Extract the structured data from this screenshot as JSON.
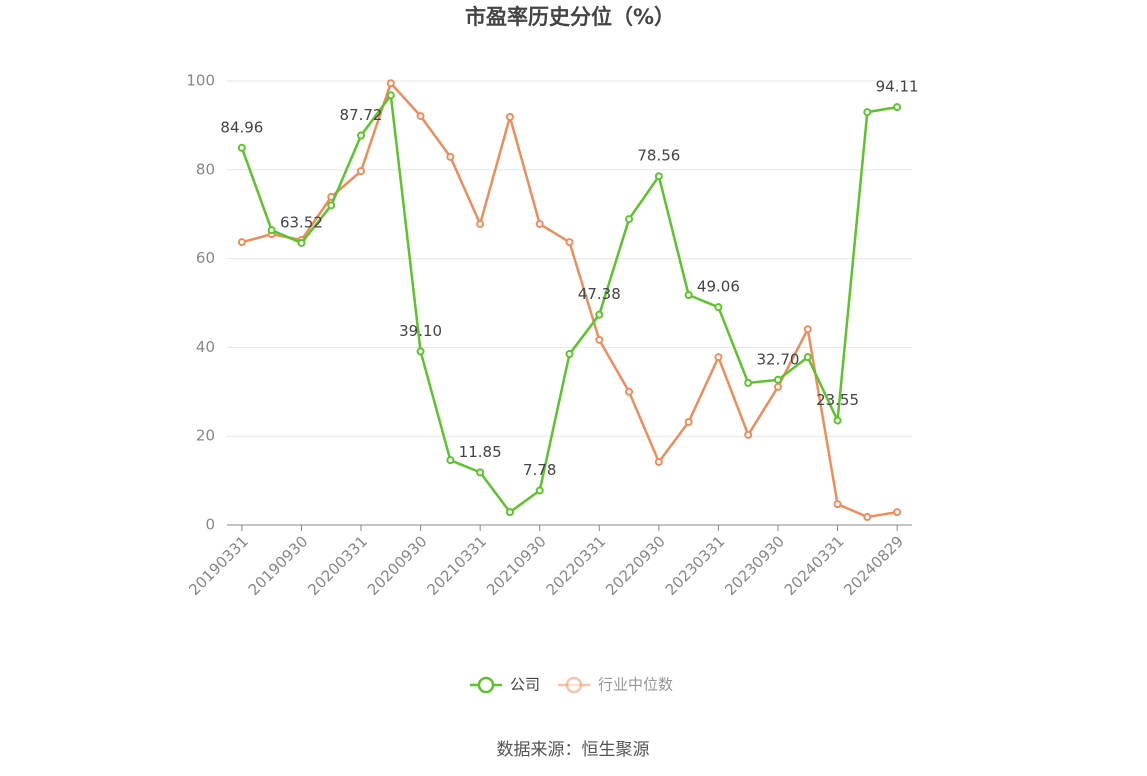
{
  "chart_data": {
    "type": "line",
    "title": "市盈率历史分位（%）",
    "source": "数据来源：恒生聚源",
    "categories": [
      "20190331",
      null,
      "20190930",
      null,
      "20200331",
      null,
      "20200930",
      null,
      "20210331",
      null,
      "20210930",
      null,
      "20220331",
      null,
      "20220930",
      null,
      "20230331",
      null,
      "20230930",
      null,
      "20240331",
      null,
      "20240829"
    ],
    "ylim": [
      0,
      100
    ],
    "yticks": [
      0,
      20,
      40,
      60,
      80,
      100
    ],
    "grid": true,
    "legend": "bottom",
    "series": [
      {
        "name": "公司",
        "color": "#5bc42a",
        "values": [
          84.96,
          66.4,
          63.52,
          72,
          87.72,
          96.8,
          39.1,
          14.6,
          11.85,
          2.9,
          7.78,
          38.5,
          47.38,
          68.9,
          78.56,
          51.8,
          49.06,
          32,
          32.7,
          37.8,
          23.55,
          93,
          94.11
        ],
        "value_labels": [
          "84.96",
          null,
          "63.52",
          null,
          "87.72",
          null,
          "39.10",
          null,
          "11.85",
          null,
          "7.78",
          null,
          "47.38",
          null,
          "78.56",
          null,
          "49.06",
          null,
          "32.70",
          null,
          "23.55",
          null,
          "94.11"
        ]
      },
      {
        "name": "行业中位数",
        "color": "#f08c5a",
        "values": [
          63.7,
          65.5,
          64.2,
          73.9,
          79.7,
          99.5,
          92.1,
          82.9,
          67.8,
          91.9,
          67.8,
          63.7,
          41.7,
          30,
          14.2,
          23.2,
          37.8,
          20.3,
          31.1,
          44.1,
          4.7,
          1.8,
          2.9
        ]
      }
    ]
  }
}
